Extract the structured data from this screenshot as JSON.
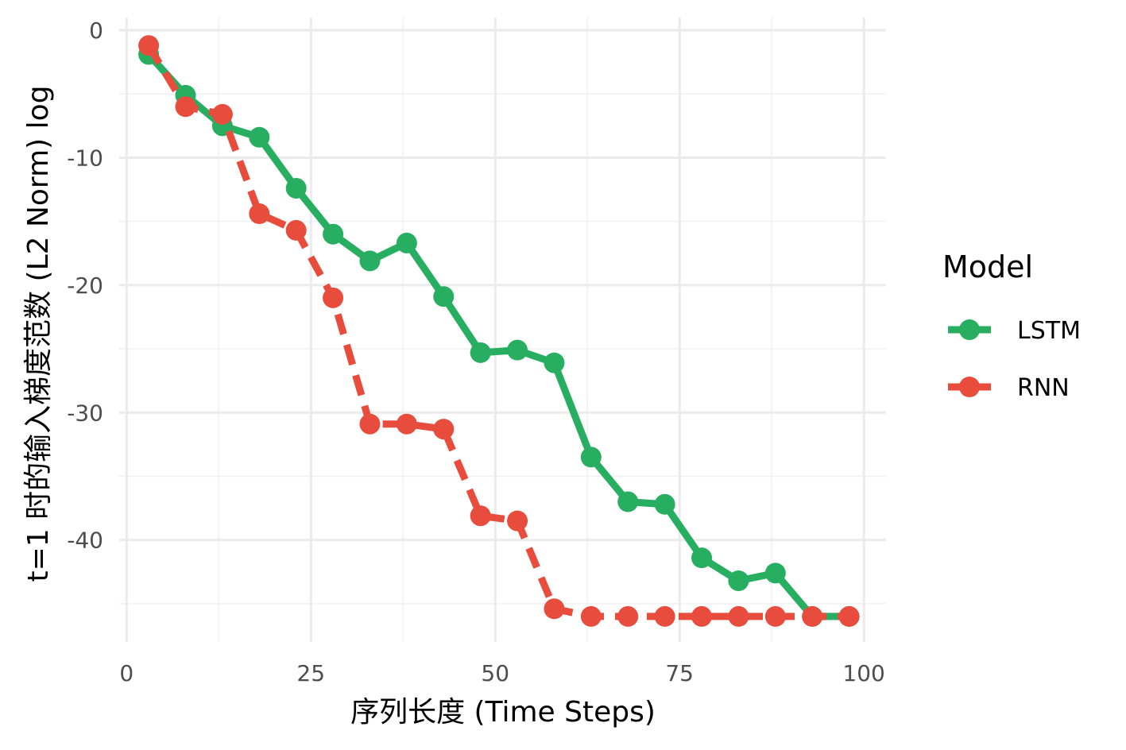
{
  "chart_data": {
    "type": "line",
    "xlabel": "序列长度 (Time Steps)",
    "ylabel": "t=1 时的输入梯度范数 (L2 Norm) log",
    "xlim": [
      -1,
      103
    ],
    "ylim": [
      -48,
      1
    ],
    "x_ticks": [
      0,
      25,
      50,
      75,
      100
    ],
    "x_tick_labels": [
      "0",
      "25",
      "50",
      "75",
      "100"
    ],
    "y_ticks": [
      0,
      -10,
      -20,
      -30,
      -40
    ],
    "y_tick_labels": [
      "0",
      "-10",
      "-20",
      "-30",
      "-40"
    ],
    "grid": true,
    "legend": {
      "title": "Model",
      "placement": "right"
    },
    "series": [
      {
        "name": "LSTM",
        "color": "#27ae60",
        "line_style": "solid",
        "x": [
          3,
          8,
          13,
          18,
          23,
          28,
          33,
          38,
          43,
          48,
          53,
          58,
          63,
          68,
          73,
          78,
          83,
          88,
          93,
          98
        ],
        "y": [
          -1.9,
          -5.1,
          -7.5,
          -8.4,
          -12.4,
          -16.0,
          -18.1,
          -16.7,
          -20.9,
          -25.3,
          -25.1,
          -26.1,
          -33.5,
          -37.0,
          -37.2,
          -41.4,
          -43.2,
          -42.6,
          -46.0,
          -46.0
        ]
      },
      {
        "name": "RNN",
        "color": "#e74c3c",
        "line_style": "dashed",
        "x": [
          3,
          8,
          13,
          18,
          23,
          28,
          33,
          38,
          43,
          48,
          53,
          58,
          63,
          68,
          73,
          78,
          83,
          88,
          93,
          98
        ],
        "y": [
          -1.2,
          -6.0,
          -6.6,
          -14.4,
          -15.7,
          -21.0,
          -30.9,
          -30.9,
          -31.3,
          -38.1,
          -38.5,
          -45.4,
          -46.0,
          -46.0,
          -46.0,
          -46.0,
          -46.0,
          -46.0,
          -46.0,
          -46.0
        ]
      }
    ]
  }
}
